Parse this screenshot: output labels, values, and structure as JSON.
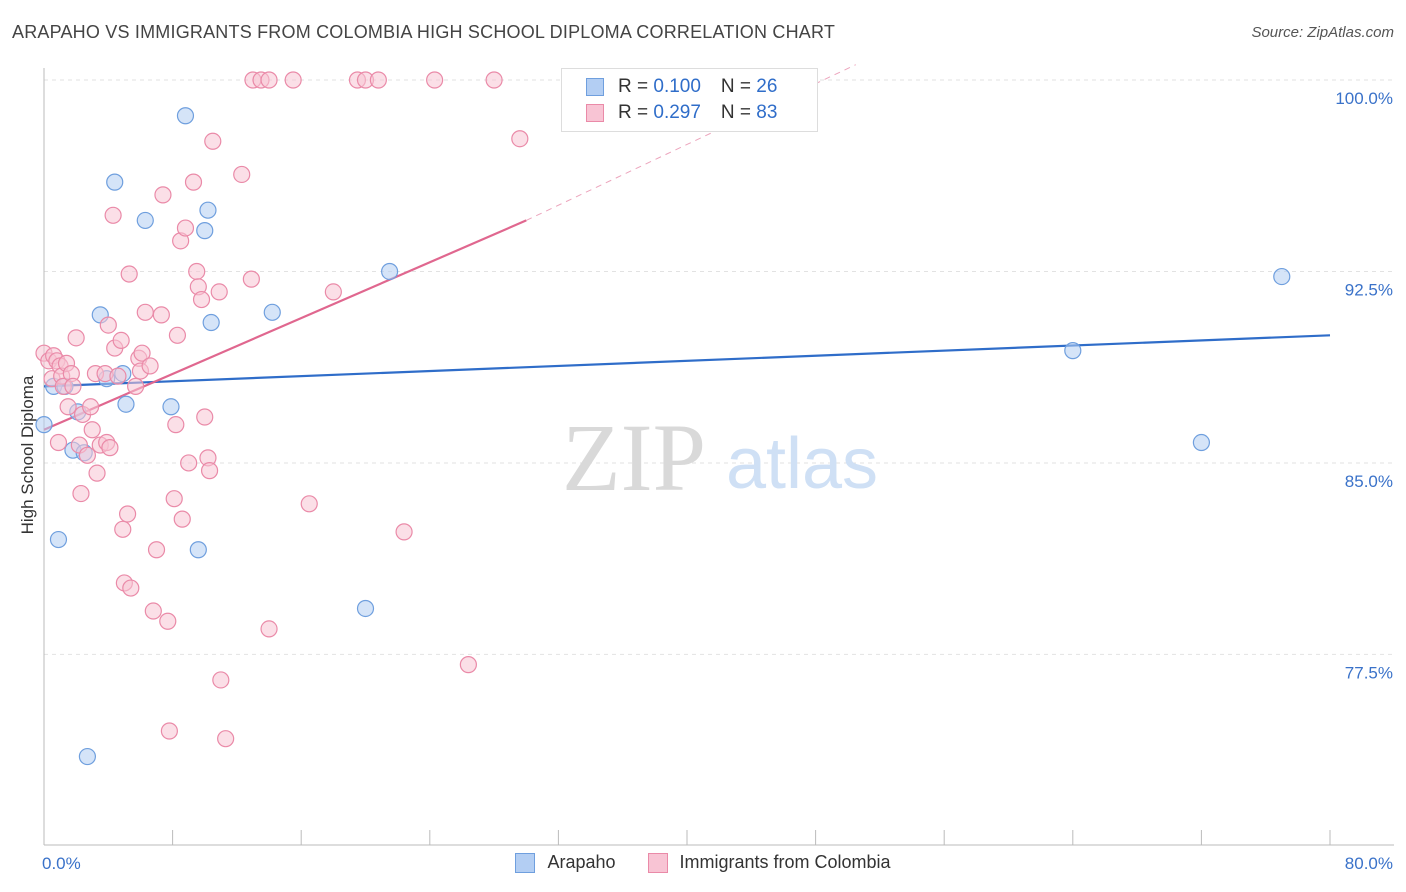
{
  "title": "ARAPAHO VS IMMIGRANTS FROM COLOMBIA HIGH SCHOOL DIPLOMA CORRELATION CHART",
  "source": "Source: ZipAtlas.com",
  "watermark": {
    "zip": "ZIP",
    "atlas": "atlas"
  },
  "legend": {
    "rows": [
      {
        "r_label": "R = ",
        "r_value": "0.100",
        "n_label": "N = ",
        "n_value": "26"
      },
      {
        "r_label": "R = ",
        "r_value": "0.297",
        "n_label": "N = ",
        "n_value": "83"
      }
    ]
  },
  "colors": {
    "blue_fill": "#b3cef3",
    "blue_stroke": "#6f9fde",
    "blue_line": "#2f6dc9",
    "pink_fill": "#f8c4d4",
    "pink_stroke": "#ea8aa8",
    "pink_line": "#e0678f",
    "tick_text": "#3a72c9",
    "grid": "#e2e2e2"
  },
  "chart_data": {
    "type": "scatter",
    "title": "ARAPAHO VS IMMIGRANTS FROM COLOMBIA HIGH SCHOOL DIPLOMA CORRELATION CHART",
    "xlabel": "",
    "ylabel": "High School Diploma",
    "xlim": [
      0,
      80
    ],
    "ylim": [
      71,
      101.5
    ],
    "x_tick_labels": [
      "0.0%",
      "80.0%"
    ],
    "y_ticks": [
      77.5,
      85.0,
      92.5,
      100.0
    ],
    "y_tick_labels": [
      "77.5%",
      "85.0%",
      "92.5%",
      "100.0%"
    ],
    "series": [
      {
        "name": "Arapaho",
        "color": "blue",
        "trend": {
          "x": [
            0,
            80
          ],
          "y": [
            88.0,
            90.0
          ],
          "dashed_to": null
        },
        "points": [
          [
            0.0,
            86.5
          ],
          [
            0.6,
            88.0
          ],
          [
            0.9,
            82.0
          ],
          [
            1.3,
            88.0
          ],
          [
            1.8,
            85.5
          ],
          [
            2.1,
            87.0
          ],
          [
            2.5,
            85.4
          ],
          [
            2.7,
            73.5
          ],
          [
            3.5,
            90.8
          ],
          [
            3.9,
            88.3
          ],
          [
            4.4,
            96.0
          ],
          [
            4.9,
            88.5
          ],
          [
            5.1,
            87.3
          ],
          [
            6.3,
            94.5
          ],
          [
            7.9,
            87.2
          ],
          [
            8.8,
            98.6
          ],
          [
            9.6,
            81.6
          ],
          [
            10.0,
            94.1
          ],
          [
            10.2,
            94.9
          ],
          [
            10.4,
            90.5
          ],
          [
            14.2,
            90.9
          ],
          [
            20.0,
            79.3
          ],
          [
            21.5,
            92.5
          ],
          [
            64.0,
            89.4
          ],
          [
            72.0,
            85.8
          ],
          [
            77.0,
            92.3
          ]
        ]
      },
      {
        "name": "Immigrants from Colombia",
        "color": "pink",
        "trend": {
          "x": [
            0,
            30
          ],
          "y": [
            86.3,
            94.5
          ],
          "dashed_to": [
            50.5,
            100.6
          ]
        },
        "points": [
          [
            0.0,
            89.3
          ],
          [
            0.3,
            89.0
          ],
          [
            0.5,
            88.3
          ],
          [
            0.6,
            89.2
          ],
          [
            0.8,
            89.0
          ],
          [
            1.0,
            88.8
          ],
          [
            1.1,
            88.4
          ],
          [
            1.2,
            88.0
          ],
          [
            0.9,
            85.8
          ],
          [
            1.4,
            88.9
          ],
          [
            1.5,
            87.2
          ],
          [
            1.7,
            88.5
          ],
          [
            1.8,
            88.0
          ],
          [
            2.0,
            89.9
          ],
          [
            2.2,
            85.7
          ],
          [
            2.4,
            86.9
          ],
          [
            2.3,
            83.8
          ],
          [
            2.7,
            85.3
          ],
          [
            2.9,
            87.2
          ],
          [
            3.0,
            86.3
          ],
          [
            3.2,
            88.5
          ],
          [
            3.3,
            84.6
          ],
          [
            3.5,
            85.7
          ],
          [
            3.8,
            88.5
          ],
          [
            3.9,
            85.8
          ],
          [
            4.0,
            90.4
          ],
          [
            4.1,
            85.6
          ],
          [
            4.3,
            94.7
          ],
          [
            4.4,
            89.5
          ],
          [
            4.6,
            88.4
          ],
          [
            4.8,
            89.8
          ],
          [
            4.9,
            82.4
          ],
          [
            5.0,
            80.3
          ],
          [
            5.2,
            83.0
          ],
          [
            5.3,
            92.4
          ],
          [
            5.4,
            80.1
          ],
          [
            5.7,
            88.0
          ],
          [
            5.9,
            89.1
          ],
          [
            6.0,
            88.6
          ],
          [
            6.1,
            89.3
          ],
          [
            6.3,
            90.9
          ],
          [
            6.6,
            88.8
          ],
          [
            6.8,
            79.2
          ],
          [
            7.0,
            81.6
          ],
          [
            7.3,
            90.8
          ],
          [
            7.4,
            95.5
          ],
          [
            7.7,
            78.8
          ],
          [
            7.8,
            74.5
          ],
          [
            8.1,
            83.6
          ],
          [
            8.2,
            86.5
          ],
          [
            8.3,
            90.0
          ],
          [
            8.5,
            93.7
          ],
          [
            8.6,
            82.8
          ],
          [
            8.8,
            94.2
          ],
          [
            9.0,
            85.0
          ],
          [
            9.3,
            96.0
          ],
          [
            9.5,
            92.5
          ],
          [
            9.6,
            91.9
          ],
          [
            9.8,
            91.4
          ],
          [
            10.0,
            86.8
          ],
          [
            10.2,
            85.2
          ],
          [
            10.3,
            84.7
          ],
          [
            10.5,
            97.6
          ],
          [
            10.9,
            91.7
          ],
          [
            11.0,
            76.5
          ],
          [
            11.3,
            74.2
          ],
          [
            12.3,
            96.3
          ],
          [
            12.9,
            92.2
          ],
          [
            13.0,
            100.0
          ],
          [
            13.5,
            100.0
          ],
          [
            14.0,
            100.0
          ],
          [
            14.0,
            78.5
          ],
          [
            15.5,
            100.0
          ],
          [
            16.5,
            83.4
          ],
          [
            18.0,
            91.7
          ],
          [
            19.5,
            100.0
          ],
          [
            20.0,
            100.0
          ],
          [
            20.8,
            100.0
          ],
          [
            22.4,
            82.3
          ],
          [
            24.3,
            100.0
          ],
          [
            26.4,
            77.1
          ],
          [
            28.0,
            100.0
          ],
          [
            29.6,
            97.7
          ]
        ]
      }
    ]
  },
  "bottom_legend": [
    "Arapaho",
    "Immigrants from Colombia"
  ]
}
